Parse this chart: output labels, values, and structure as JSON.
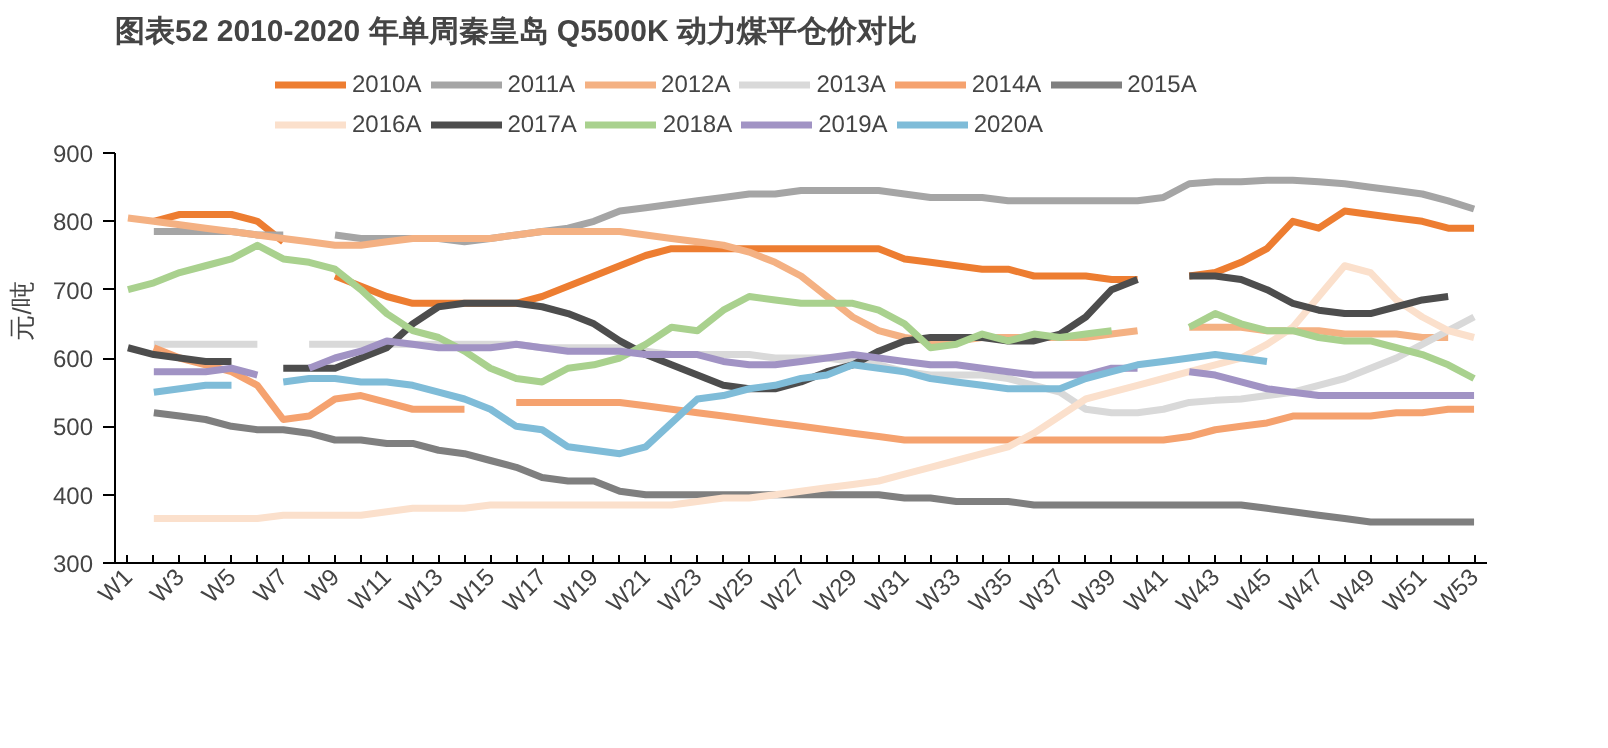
{
  "chart_data": {
    "type": "line",
    "title": "图表52    2010-2020 年单周秦皇岛 Q5500K 动力煤平仓价对比",
    "ylabel": "元/吨",
    "legend": "top",
    "ylim": [
      300,
      900
    ],
    "yticks": [
      300,
      400,
      500,
      600,
      700,
      800,
      900
    ],
    "categories": [
      "W1",
      null,
      "W3",
      null,
      "W5",
      null,
      "W7",
      null,
      "W9",
      null,
      "W11",
      null,
      "W13",
      null,
      "W15",
      null,
      "W17",
      null,
      "W19",
      null,
      "W21",
      null,
      "W23",
      null,
      "W25",
      null,
      "W27",
      null,
      "W29",
      null,
      "W31",
      null,
      "W33",
      null,
      "W35",
      null,
      "W37",
      null,
      "W39",
      null,
      "W41",
      null,
      "W43",
      null,
      "W45",
      null,
      "W47",
      null,
      "W49",
      null,
      "W51",
      null,
      "W53"
    ],
    "series": [
      {
        "name": "2010A",
        "color": "#ed7d31",
        "values": [
          null,
          800,
          810,
          810,
          810,
          800,
          770,
          null,
          720,
          705,
          690,
          680,
          680,
          680,
          680,
          680,
          690,
          705,
          720,
          735,
          750,
          760,
          760,
          760,
          760,
          760,
          760,
          760,
          760,
          760,
          745,
          740,
          735,
          730,
          730,
          720,
          720,
          720,
          715,
          715,
          null,
          720,
          725,
          740,
          760,
          800,
          790,
          815,
          810,
          805,
          800,
          790,
          790
        ]
      },
      {
        "name": "2011A",
        "color": "#a5a5a5",
        "values": [
          null,
          785,
          785,
          785,
          785,
          780,
          780,
          null,
          780,
          775,
          775,
          775,
          775,
          770,
          775,
          780,
          785,
          790,
          800,
          815,
          820,
          825,
          830,
          835,
          840,
          840,
          845,
          845,
          845,
          845,
          840,
          835,
          835,
          835,
          830,
          830,
          830,
          830,
          830,
          830,
          835,
          855,
          858,
          858,
          860,
          860,
          858,
          855,
          850,
          845,
          840,
          830,
          818
        ]
      },
      {
        "name": "2012A",
        "color": "#f4b183",
        "values": [
          805,
          800,
          795,
          790,
          785,
          780,
          775,
          770,
          765,
          765,
          770,
          775,
          775,
          775,
          775,
          780,
          785,
          785,
          785,
          785,
          780,
          775,
          770,
          765,
          755,
          740,
          720,
          690,
          660,
          640,
          630,
          625,
          625,
          630,
          630,
          630,
          630,
          630,
          635,
          640,
          null,
          645,
          645,
          645,
          640,
          640,
          640,
          635,
          635,
          635,
          630,
          630,
          null
        ]
      },
      {
        "name": "2013A",
        "color": "#d9d9d9",
        "values": [
          null,
          620,
          620,
          620,
          620,
          620,
          null,
          620,
          620,
          620,
          620,
          620,
          620,
          620,
          620,
          620,
          615,
          615,
          615,
          615,
          610,
          605,
          605,
          605,
          605,
          600,
          600,
          600,
          595,
          590,
          580,
          575,
          575,
          575,
          570,
          560,
          550,
          525,
          520,
          520,
          525,
          535,
          538,
          540,
          545,
          550,
          560,
          570,
          585,
          600,
          620,
          640,
          660
        ]
      },
      {
        "name": "2014A",
        "color": "#f5a26f",
        "values": [
          null,
          615,
          600,
          590,
          580,
          560,
          510,
          515,
          540,
          545,
          535,
          525,
          525,
          525,
          null,
          535,
          535,
          535,
          535,
          535,
          530,
          525,
          520,
          515,
          510,
          505,
          500,
          495,
          490,
          485,
          480,
          480,
          480,
          480,
          480,
          480,
          480,
          480,
          480,
          480,
          480,
          485,
          495,
          500,
          505,
          515,
          515,
          515,
          515,
          520,
          520,
          525,
          525
        ]
      },
      {
        "name": "2015A",
        "color": "#7f7f7f",
        "values": [
          null,
          520,
          515,
          510,
          500,
          495,
          495,
          490,
          480,
          480,
          475,
          475,
          465,
          460,
          450,
          440,
          425,
          420,
          420,
          405,
          400,
          400,
          400,
          400,
          400,
          400,
          400,
          400,
          400,
          400,
          395,
          395,
          390,
          390,
          390,
          385,
          385,
          385,
          385,
          385,
          385,
          385,
          385,
          385,
          380,
          375,
          370,
          365,
          360,
          360,
          360,
          360,
          360
        ]
      },
      {
        "name": "2016A",
        "color": "#fbe0cc",
        "values": [
          null,
          365,
          365,
          365,
          365,
          365,
          370,
          370,
          370,
          370,
          375,
          380,
          380,
          380,
          385,
          385,
          385,
          385,
          385,
          385,
          385,
          385,
          390,
          395,
          395,
          400,
          405,
          410,
          415,
          420,
          430,
          440,
          450,
          460,
          470,
          490,
          515,
          540,
          550,
          560,
          570,
          580,
          590,
          600,
          620,
          645,
          690,
          735,
          725,
          685,
          660,
          640,
          630
        ]
      },
      {
        "name": "2017A",
        "color": "#4d4d4d",
        "values": [
          615,
          605,
          600,
          595,
          595,
          null,
          585,
          585,
          585,
          600,
          615,
          650,
          675,
          680,
          680,
          680,
          675,
          665,
          650,
          625,
          605,
          590,
          575,
          560,
          555,
          555,
          565,
          580,
          590,
          610,
          625,
          630,
          630,
          630,
          625,
          625,
          635,
          660,
          700,
          715,
          null,
          720,
          720,
          715,
          700,
          680,
          670,
          665,
          665,
          675,
          685,
          690,
          null
        ]
      },
      {
        "name": "2018A",
        "color": "#a9d18e",
        "values": [
          700,
          710,
          725,
          735,
          745,
          765,
          745,
          740,
          730,
          700,
          665,
          640,
          630,
          610,
          585,
          570,
          565,
          585,
          590,
          600,
          620,
          645,
          640,
          670,
          690,
          685,
          680,
          680,
          680,
          670,
          650,
          615,
          620,
          635,
          625,
          635,
          630,
          635,
          640,
          null,
          null,
          645,
          665,
          650,
          640,
          640,
          630,
          625,
          625,
          615,
          605,
          590,
          570
        ]
      },
      {
        "name": "2019A",
        "color": "#a193c4",
        "values": [
          null,
          580,
          580,
          580,
          585,
          575,
          null,
          585,
          600,
          610,
          625,
          620,
          615,
          615,
          615,
          620,
          615,
          610,
          610,
          610,
          605,
          605,
          605,
          595,
          590,
          590,
          595,
          600,
          605,
          600,
          595,
          590,
          590,
          585,
          580,
          575,
          575,
          575,
          585,
          585,
          null,
          580,
          575,
          565,
          555,
          550,
          545,
          545,
          545,
          545,
          545,
          545,
          545
        ]
      },
      {
        "name": "2020A",
        "color": "#7fbcd8",
        "values": [
          null,
          550,
          555,
          560,
          560,
          null,
          565,
          570,
          570,
          565,
          565,
          560,
          550,
          540,
          525,
          500,
          495,
          470,
          465,
          460,
          470,
          505,
          540,
          545,
          555,
          560,
          570,
          575,
          590,
          585,
          580,
          570,
          565,
          560,
          555,
          555,
          555,
          570,
          580,
          590,
          595,
          600,
          605,
          600,
          595,
          null,
          null,
          null,
          null,
          null,
          null,
          null,
          null
        ]
      }
    ]
  }
}
